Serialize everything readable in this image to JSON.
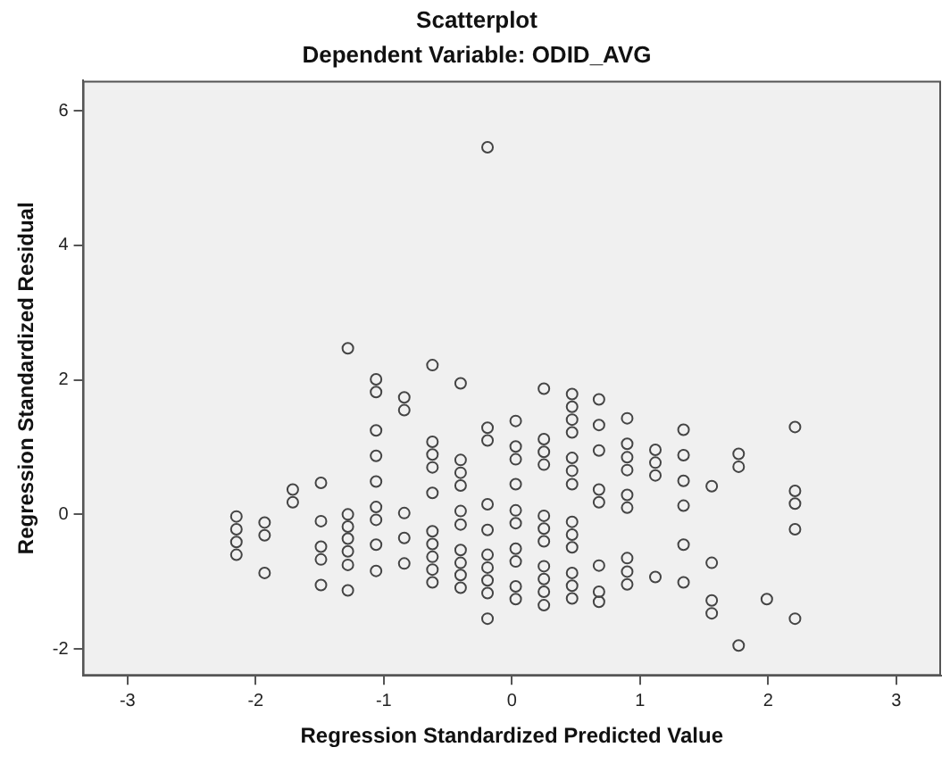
{
  "chart_data": {
    "type": "scatter",
    "title": "Scatterplot",
    "subtitle": "Dependent Variable: ODID_AVG",
    "xlabel": "Regression Standardized Predicted Value",
    "ylabel": "Regression Standardized Residual",
    "color": "#444444",
    "marker": "circle",
    "xlim": [
      -3.35,
      3.35
    ],
    "ylim": [
      -2.4,
      6.45
    ],
    "xticks": [
      -3,
      -2,
      -1,
      0,
      1,
      2,
      3
    ],
    "yticks": [
      -2,
      0,
      2,
      4,
      6
    ],
    "x": [
      -2.15,
      -2.15,
      -2.15,
      -2.15,
      -1.93,
      -1.93,
      -1.93,
      -1.71,
      -1.71,
      -1.49,
      -1.49,
      -1.49,
      -1.49,
      -1.49,
      -1.28,
      -1.28,
      -1.28,
      -1.28,
      -1.28,
      -1.28,
      -1.28,
      -1.06,
      -1.06,
      -1.06,
      -1.06,
      -1.06,
      -1.06,
      -1.06,
      -1.06,
      -1.06,
      -0.84,
      -0.84,
      -0.84,
      -0.84,
      -0.84,
      -0.62,
      -0.62,
      -0.62,
      -0.62,
      -0.62,
      -0.62,
      -0.62,
      -0.62,
      -0.62,
      -0.62,
      -0.4,
      -0.4,
      -0.4,
      -0.4,
      -0.4,
      -0.4,
      -0.4,
      -0.4,
      -0.4,
      -0.4,
      -0.19,
      -0.19,
      -0.19,
      -0.19,
      -0.19,
      -0.19,
      -0.19,
      -0.19,
      -0.19,
      -0.19,
      0.03,
      0.03,
      0.03,
      0.03,
      0.03,
      0.03,
      0.03,
      0.03,
      0.03,
      0.03,
      0.25,
      0.25,
      0.25,
      0.25,
      0.25,
      0.25,
      0.25,
      0.25,
      0.25,
      0.25,
      0.25,
      0.47,
      0.47,
      0.47,
      0.47,
      0.47,
      0.47,
      0.47,
      0.47,
      0.47,
      0.47,
      0.47,
      0.47,
      0.47,
      0.68,
      0.68,
      0.68,
      0.68,
      0.68,
      0.68,
      0.68,
      0.68,
      0.9,
      0.9,
      0.9,
      0.9,
      0.9,
      0.9,
      0.9,
      0.9,
      0.9,
      1.12,
      1.12,
      1.12,
      1.12,
      1.34,
      1.34,
      1.34,
      1.34,
      1.34,
      1.34,
      1.56,
      1.56,
      1.56,
      1.56,
      1.77,
      1.77,
      1.77,
      1.99,
      2.21,
      2.21,
      2.21,
      2.21,
      2.21
    ],
    "values": [
      -0.03,
      -0.22,
      -0.41,
      -0.6,
      -0.12,
      -0.31,
      -0.87,
      0.37,
      0.18,
      0.47,
      -0.1,
      -0.48,
      -0.67,
      -1.05,
      2.47,
      0,
      -0.18,
      -0.36,
      -0.55,
      -0.75,
      -1.13,
      2.01,
      1.82,
      1.25,
      0.87,
      0.49,
      0.11,
      -0.08,
      -0.45,
      -0.84,
      1.74,
      1.55,
      0.02,
      -0.35,
      -0.73,
      2.22,
      1.08,
      0.89,
      0.7,
      0.32,
      -0.25,
      -0.44,
      -0.63,
      -0.82,
      -1.01,
      1.95,
      0.81,
      0.62,
      0.43,
      0.05,
      -0.15,
      -0.53,
      -0.72,
      -0.9,
      -1.09,
      5.46,
      1.29,
      1.1,
      0.15,
      -0.23,
      -0.6,
      -0.79,
      -0.98,
      -1.17,
      -1.55,
      1.39,
      1.01,
      0.82,
      0.45,
      0.06,
      -0.13,
      -0.51,
      -0.7,
      -1.07,
      -1.26,
      1.87,
      1.12,
      0.93,
      0.74,
      -0.02,
      -0.21,
      -0.4,
      -0.77,
      -0.96,
      -1.15,
      -1.35,
      1.79,
      1.6,
      1.41,
      1.22,
      0.84,
      0.65,
      0.45,
      -0.11,
      -0.3,
      -0.49,
      -0.87,
      -1.06,
      -1.25,
      1.71,
      1.33,
      0.95,
      0.37,
      0.18,
      -0.76,
      -1.15,
      -1.3,
      1.43,
      1.05,
      0.85,
      0.66,
      0.29,
      0.1,
      -0.65,
      -0.85,
      -1.04,
      0.96,
      0.77,
      0.58,
      -0.93,
      1.26,
      0.88,
      0.5,
      0.13,
      -0.45,
      -1.01,
      0.42,
      -0.72,
      -1.28,
      -1.47,
      0.9,
      0.71,
      -1.95,
      -1.26,
      1.3,
      0.35,
      0.16,
      -0.22,
      -1.55
    ]
  }
}
